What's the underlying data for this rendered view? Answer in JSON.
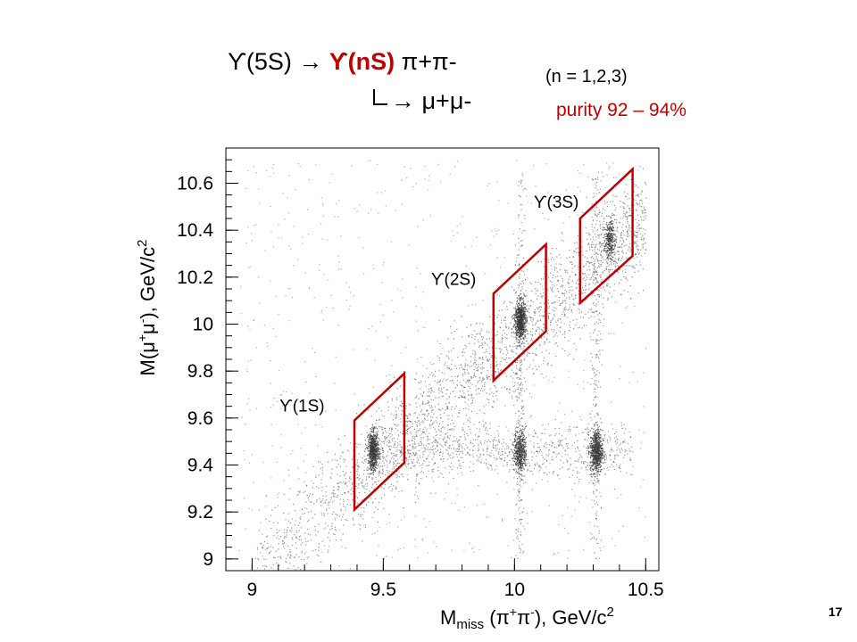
{
  "header": {
    "decay_prefix": "ϒ(5S)  →  ",
    "decay_highlight": "ϒ(nS)",
    "decay_suffix": " π+π-",
    "decay_sub": "→ μ+μ-",
    "n_note": "(n = 1,2,3)",
    "purity": "purity 92 – 94%"
  },
  "slide_number": "17",
  "colors": {
    "box": "#c00000",
    "points": "#3a3a3a",
    "highlight_text": "#c00000"
  },
  "chart_data": {
    "type": "scatter",
    "xlabel": "M_miss (π+π-), GeV/c2",
    "ylabel": "M(μ+μ-), GeV/c2",
    "xlim": [
      8.9,
      10.55
    ],
    "ylim": [
      8.95,
      10.75
    ],
    "x_ticks": [
      9,
      9.5,
      10,
      10.5
    ],
    "x_tick_labels": [
      "9",
      "9.5",
      "10",
      "10.5"
    ],
    "y_ticks": [
      9,
      9.2,
      9.4,
      9.6,
      9.8,
      10,
      10.2,
      10.4,
      10.6
    ],
    "y_tick_labels": [
      "9",
      "9.2",
      "9.4",
      "9.6",
      "9.8",
      "10",
      "10.2",
      "10.4",
      "10.6"
    ],
    "grid": false,
    "clusters": [
      {
        "name": "ϒ(1S)",
        "x": 9.46,
        "y": 9.46
      },
      {
        "name": "ϒ(2S)",
        "x": 10.02,
        "y": 10.02
      },
      {
        "name": "ϒ(3S)",
        "x": 10.36,
        "y": 10.36
      },
      {
        "name": "",
        "x": 10.02,
        "y": 9.46
      },
      {
        "name": "",
        "x": 10.31,
        "y": 9.46
      }
    ],
    "selection_boxes": [
      {
        "label": "ϒ(1S)",
        "corners": [
          [
            9.39,
            9.21
          ],
          [
            9.39,
            9.59
          ],
          [
            9.58,
            9.79
          ],
          [
            9.58,
            9.41
          ]
        ]
      },
      {
        "label": "ϒ(2S)",
        "corners": [
          [
            9.92,
            9.76
          ],
          [
            9.92,
            10.13
          ],
          [
            10.12,
            10.34
          ],
          [
            10.12,
            9.97
          ]
        ]
      },
      {
        "label": "ϒ(3S)",
        "corners": [
          [
            10.25,
            10.09
          ],
          [
            10.25,
            10.45
          ],
          [
            10.45,
            10.66
          ],
          [
            10.45,
            10.29
          ]
        ]
      }
    ]
  }
}
